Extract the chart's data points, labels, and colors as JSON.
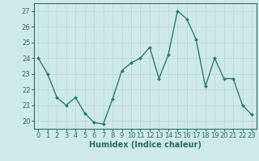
{
  "x": [
    0,
    1,
    2,
    3,
    4,
    5,
    6,
    7,
    8,
    9,
    10,
    11,
    12,
    13,
    14,
    15,
    16,
    17,
    18,
    19,
    20,
    21,
    22,
    23
  ],
  "y": [
    24.0,
    23.0,
    21.5,
    21.0,
    21.5,
    20.5,
    19.9,
    19.8,
    21.4,
    23.2,
    23.7,
    24.0,
    24.7,
    22.7,
    24.2,
    27.0,
    26.5,
    25.2,
    22.2,
    24.0,
    22.7,
    22.7,
    21.0,
    20.4
  ],
  "line_color": "#2d7a6e",
  "marker": "D",
  "marker_size": 2.0,
  "line_width": 1.0,
  "background_color": "#ceeae6",
  "grid_color_major": "#b8d8d4",
  "grid_color_minor": "#d4eceb",
  "xlabel": "Humidex (Indice chaleur)",
  "xlabel_fontsize": 7,
  "tick_fontsize": 6,
  "ylim": [
    19.5,
    27.5
  ],
  "yticks": [
    20,
    21,
    22,
    23,
    24,
    25,
    26,
    27
  ],
  "xticks": [
    0,
    1,
    2,
    3,
    4,
    5,
    6,
    7,
    8,
    9,
    10,
    11,
    12,
    13,
    14,
    15,
    16,
    17,
    18,
    19,
    20,
    21,
    22,
    23
  ],
  "tick_color": "#2d6b60",
  "label_color": "#2d6b60",
  "spine_color": "#2d6b60"
}
